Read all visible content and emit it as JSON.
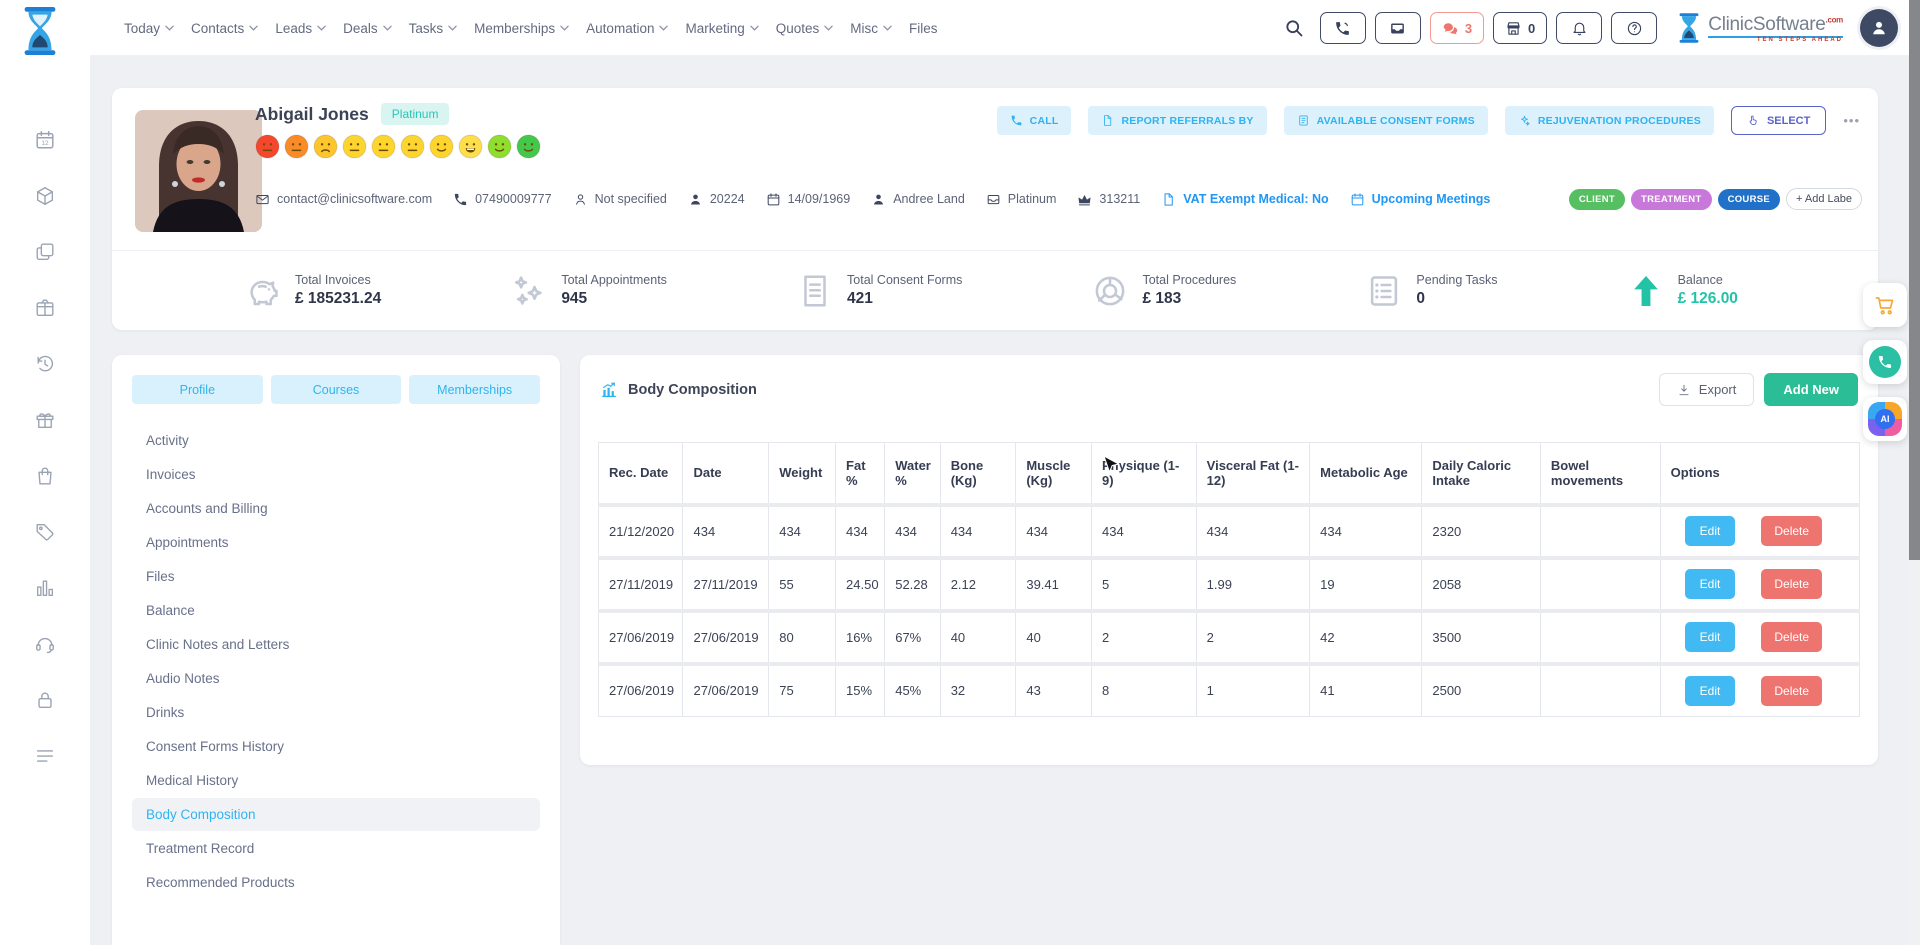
{
  "topnav": {
    "items": [
      {
        "label": "Today",
        "chevron": true
      },
      {
        "label": "Contacts",
        "chevron": true
      },
      {
        "label": "Leads",
        "chevron": true
      },
      {
        "label": "Deals",
        "chevron": true
      },
      {
        "label": "Tasks",
        "chevron": true
      },
      {
        "label": "Memberships",
        "chevron": true
      },
      {
        "label": "Automation",
        "chevron": true
      },
      {
        "label": "Marketing",
        "chevron": true
      },
      {
        "label": "Quotes",
        "chevron": true
      },
      {
        "label": "Misc",
        "chevron": true
      },
      {
        "label": "Files",
        "chevron": false
      }
    ],
    "chat_count": "3",
    "store_count": "0",
    "brand": {
      "name": "ClinicSoftware",
      "tld": ".com",
      "tagline": "TEN STEPS AHEAD"
    }
  },
  "rail_icons": [
    {
      "icon": "calendar-12-icon"
    },
    {
      "icon": "cube-icon"
    },
    {
      "icon": "copy-icon"
    },
    {
      "icon": "parcel-icon"
    },
    {
      "icon": "history-icon"
    },
    {
      "icon": "gift-icon"
    },
    {
      "icon": "bag-icon"
    },
    {
      "icon": "tag-icon"
    },
    {
      "icon": "bar-chart-icon"
    },
    {
      "icon": "support-icon"
    },
    {
      "icon": "lock-icon"
    },
    {
      "icon": "list-icon"
    }
  ],
  "patient": {
    "name": "Abigail Jones",
    "tier": "Platinum",
    "moods": [
      {
        "color": "#f4472e",
        "mouth": "flat"
      },
      {
        "color": "#fb8b28",
        "mouth": "flat"
      },
      {
        "color": "#fdc62e",
        "mouth": "sad"
      },
      {
        "color": "#fed42f",
        "mouth": "flat"
      },
      {
        "color": "#fed42f",
        "mouth": "flat"
      },
      {
        "color": "#fed42f",
        "mouth": "flat"
      },
      {
        "color": "#fed42f",
        "mouth": "smile"
      },
      {
        "color": "#fede4a",
        "mouth": "grin"
      },
      {
        "color": "#8edd2f",
        "mouth": "smile"
      },
      {
        "color": "#43c84c",
        "mouth": "smile"
      }
    ],
    "details": [
      {
        "icon": "envelope-icon",
        "text": "contact@clinicsoftware.com"
      },
      {
        "icon": "phone-icon",
        "text": "07490009777"
      },
      {
        "icon": "person-outline-icon",
        "text": "Not specified"
      },
      {
        "icon": "person-icon",
        "text": "20224"
      },
      {
        "icon": "calendar-icon",
        "text": "14/09/1969"
      },
      {
        "icon": "person-icon",
        "text": "Andree Land"
      },
      {
        "icon": "tray-icon",
        "text": "Platinum"
      },
      {
        "icon": "crown-icon",
        "text": "313211"
      },
      {
        "icon": "file-icon",
        "text": "VAT Exempt Medical: No",
        "accent": true
      },
      {
        "icon": "calendar-icon",
        "text": "Upcoming Meetings",
        "accent": true
      }
    ],
    "labels": [
      {
        "text": "CLIENT",
        "color": "#55bf61"
      },
      {
        "text": "TREATMENT",
        "color": "#c878d8"
      },
      {
        "text": "COURSE",
        "color": "#2071c7"
      }
    ],
    "add_label": "+ Add Labe",
    "actions": [
      {
        "icon": "phone-icon",
        "label": "CALL"
      },
      {
        "icon": "file-icon",
        "label": "REPORT REFERRALS BY"
      },
      {
        "icon": "form-icon",
        "label": "AVAILABLE CONSENT FORMS"
      },
      {
        "icon": "sparkle-icon",
        "label": "REJUVENATION PROCEDURES"
      }
    ],
    "select_label": "SELECT",
    "more_label": "•••"
  },
  "stats": [
    {
      "icon": "piggy-icon",
      "label": "Total Invoices",
      "value": "£ 185231.24"
    },
    {
      "icon": "stars-icon",
      "label": "Total Appointments",
      "value": "945"
    },
    {
      "icon": "document-icon",
      "label": "Total Consent Forms",
      "value": "421"
    },
    {
      "icon": "donut-icon",
      "label": "Total Procedures",
      "value": "£ 183"
    },
    {
      "icon": "tasklist-icon",
      "label": "Pending Tasks",
      "value": "0"
    },
    {
      "icon": "up-arrow-icon",
      "label": "Balance",
      "value": "£ 126.00",
      "accent": true
    }
  ],
  "profile_panel": {
    "tabs": [
      {
        "label": "Profile"
      },
      {
        "label": "Courses"
      },
      {
        "label": "Memberships"
      }
    ],
    "menu": [
      {
        "label": "Activity"
      },
      {
        "label": "Invoices"
      },
      {
        "label": "Accounts and Billing"
      },
      {
        "label": "Appointments"
      },
      {
        "label": "Files"
      },
      {
        "label": "Balance"
      },
      {
        "label": "Clinic Notes and Letters"
      },
      {
        "label": "Audio Notes"
      },
      {
        "label": "Drinks"
      },
      {
        "label": "Consent Forms History"
      },
      {
        "label": "Medical History"
      },
      {
        "label": "Body Composition",
        "active": true
      },
      {
        "label": "Treatment Record"
      },
      {
        "label": "Recommended Products"
      }
    ]
  },
  "body_composition": {
    "title": "Body Composition",
    "export_label": "Export",
    "add_new_label": "Add New",
    "columns": [
      "Rec. Date",
      "Date",
      "Weight",
      "Fat %",
      "Water %",
      "Bone (Kg)",
      "Muscle (Kg)",
      "Physique (1-9)",
      "Visceral Fat (1-12)",
      "Metabolic Age",
      "Daily Caloric Intake",
      "Bowel movements",
      "Options"
    ],
    "rows": [
      [
        "21/12/2020",
        "434",
        "434",
        "434",
        "434",
        "434",
        "434",
        "434",
        "434",
        "434",
        "2320",
        ""
      ],
      [
        "27/11/2019",
        "27/11/2019",
        "55",
        "24.50",
        "52.28",
        "2.12",
        "39.41",
        "5",
        "1.99",
        "19",
        "2058",
        ""
      ],
      [
        "27/06/2019",
        "27/06/2019",
        "80",
        "16%",
        "67%",
        "40",
        "40",
        "2",
        "2",
        "42",
        "3500",
        ""
      ],
      [
        "27/06/2019",
        "27/06/2019",
        "75",
        "15%",
        "45%",
        "32",
        "43",
        "8",
        "1",
        "41",
        "2500",
        ""
      ]
    ],
    "edit_label": "Edit",
    "delete_label": "Delete"
  },
  "floating": {
    "ai_label": "AI"
  }
}
